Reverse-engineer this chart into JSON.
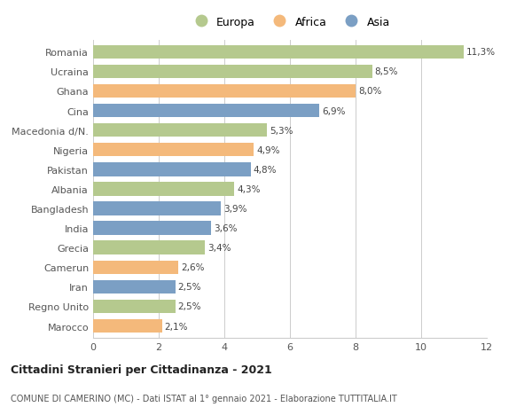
{
  "countries": [
    "Romania",
    "Ucraina",
    "Ghana",
    "Cina",
    "Macedonia d/N.",
    "Nigeria",
    "Pakistan",
    "Albania",
    "Bangladesh",
    "India",
    "Grecia",
    "Camerun",
    "Iran",
    "Regno Unito",
    "Marocco"
  ],
  "values": [
    11.3,
    8.5,
    8.0,
    6.9,
    5.3,
    4.9,
    4.8,
    4.3,
    3.9,
    3.6,
    3.4,
    2.6,
    2.5,
    2.5,
    2.1
  ],
  "continents": [
    "Europa",
    "Europa",
    "Africa",
    "Asia",
    "Europa",
    "Africa",
    "Asia",
    "Europa",
    "Asia",
    "Asia",
    "Europa",
    "Africa",
    "Asia",
    "Europa",
    "Africa"
  ],
  "labels": [
    "11,3%",
    "8,5%",
    "8,0%",
    "6,9%",
    "5,3%",
    "4,9%",
    "4,8%",
    "4,3%",
    "3,9%",
    "3,6%",
    "3,4%",
    "2,6%",
    "2,5%",
    "2,5%",
    "2,1%"
  ],
  "colors": {
    "Europa": "#b5c98e",
    "Africa": "#f4b97b",
    "Asia": "#7b9fc4"
  },
  "legend_labels": [
    "Europa",
    "Africa",
    "Asia"
  ],
  "title_main": "Cittadini Stranieri per Cittadinanza - 2021",
  "title_sub": "COMUNE DI CAMERINO (MC) - Dati ISTAT al 1° gennaio 2021 - Elaborazione TUTTITALIA.IT",
  "xlim": [
    0,
    12
  ],
  "xticks": [
    0,
    2,
    4,
    6,
    8,
    10,
    12
  ],
  "background_color": "#ffffff",
  "grid_color": "#cccccc"
}
